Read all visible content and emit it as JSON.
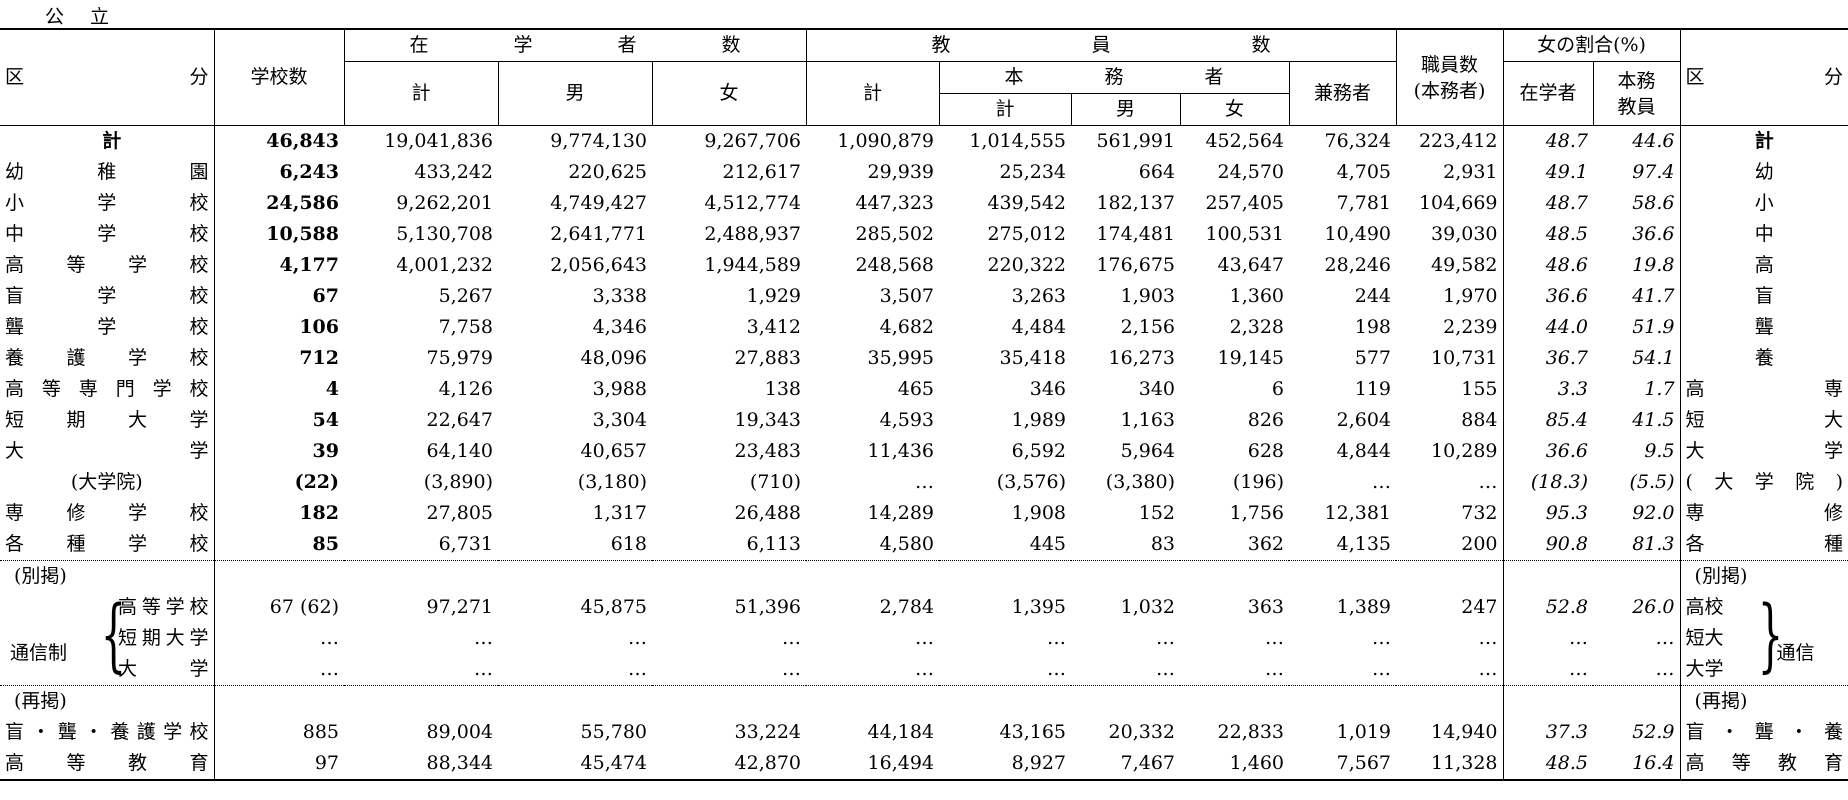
{
  "caption": "公立",
  "header": {
    "kubun": [
      "区",
      "分"
    ],
    "schools": "学校数",
    "students_group": [
      "在",
      "学",
      "者",
      "数"
    ],
    "teachers_group": [
      "教",
      "員",
      "数"
    ],
    "honmu_group": [
      "本",
      "務",
      "者"
    ],
    "kei": "計",
    "male": "男",
    "female": "女",
    "kenmu": "兼務者",
    "staff": [
      "職員数",
      "(本務者)"
    ],
    "female_ratio": "女の割合(%)",
    "ratio_students": "在学者",
    "ratio_teachers": [
      "本務",
      "教員"
    ]
  },
  "rows": [
    {
      "label": "計",
      "label_r": "計",
      "schools": "46,843",
      "st_t": "19,041,836",
      "st_m": "9,774,130",
      "st_f": "9,267,706",
      "te_t": "1,090,879",
      "hm_t": "1,014,555",
      "hm_m": "561,991",
      "hm_f": "452,564",
      "kenmu": "76,324",
      "staff": "223,412",
      "r_s": "48.7",
      "r_t": "44.6"
    },
    {
      "label": "幼稚園",
      "label_r": "幼",
      "schools": "6,243",
      "st_t": "433,242",
      "st_m": "220,625",
      "st_f": "212,617",
      "te_t": "29,939",
      "hm_t": "25,234",
      "hm_m": "664",
      "hm_f": "24,570",
      "kenmu": "4,705",
      "staff": "2,931",
      "r_s": "49.1",
      "r_t": "97.4"
    },
    {
      "label": "小学校",
      "label_r": "小",
      "schools": "24,586",
      "st_t": "9,262,201",
      "st_m": "4,749,427",
      "st_f": "4,512,774",
      "te_t": "447,323",
      "hm_t": "439,542",
      "hm_m": "182,137",
      "hm_f": "257,405",
      "kenmu": "7,781",
      "staff": "104,669",
      "r_s": "48.7",
      "r_t": "58.6"
    },
    {
      "label": "中学校",
      "label_r": "中",
      "schools": "10,588",
      "st_t": "5,130,708",
      "st_m": "2,641,771",
      "st_f": "2,488,937",
      "te_t": "285,502",
      "hm_t": "275,012",
      "hm_m": "174,481",
      "hm_f": "100,531",
      "kenmu": "10,490",
      "staff": "39,030",
      "r_s": "48.5",
      "r_t": "36.6"
    },
    {
      "label": "高等学校",
      "label_r": "高",
      "schools": "4,177",
      "st_t": "4,001,232",
      "st_m": "2,056,643",
      "st_f": "1,944,589",
      "te_t": "248,568",
      "hm_t": "220,322",
      "hm_m": "176,675",
      "hm_f": "43,647",
      "kenmu": "28,246",
      "staff": "49,582",
      "r_s": "48.6",
      "r_t": "19.8"
    },
    {
      "label": "盲学校",
      "label_r": "盲",
      "schools": "67",
      "st_t": "5,267",
      "st_m": "3,338",
      "st_f": "1,929",
      "te_t": "3,507",
      "hm_t": "3,263",
      "hm_m": "1,903",
      "hm_f": "1,360",
      "kenmu": "244",
      "staff": "1,970",
      "r_s": "36.6",
      "r_t": "41.7"
    },
    {
      "label": "聾学校",
      "label_r": "聾",
      "schools": "106",
      "st_t": "7,758",
      "st_m": "4,346",
      "st_f": "3,412",
      "te_t": "4,682",
      "hm_t": "4,484",
      "hm_m": "2,156",
      "hm_f": "2,328",
      "kenmu": "198",
      "staff": "2,239",
      "r_s": "44.0",
      "r_t": "51.9"
    },
    {
      "label": "養護学校",
      "label_r": "養",
      "schools": "712",
      "st_t": "75,979",
      "st_m": "48,096",
      "st_f": "27,883",
      "te_t": "35,995",
      "hm_t": "35,418",
      "hm_m": "16,273",
      "hm_f": "19,145",
      "kenmu": "577",
      "staff": "10,731",
      "r_s": "36.7",
      "r_t": "54.1"
    },
    {
      "label": "高等専門学校",
      "label_r": "高専",
      "schools": "4",
      "st_t": "4,126",
      "st_m": "3,988",
      "st_f": "138",
      "te_t": "465",
      "hm_t": "346",
      "hm_m": "340",
      "hm_f": "6",
      "kenmu": "119",
      "staff": "155",
      "r_s": "3.3",
      "r_t": "1.7"
    },
    {
      "label": "短期大学",
      "label_r": "短大",
      "schools": "54",
      "st_t": "22,647",
      "st_m": "3,304",
      "st_f": "19,343",
      "te_t": "4,593",
      "hm_t": "1,989",
      "hm_m": "1,163",
      "hm_f": "826",
      "kenmu": "2,604",
      "staff": "884",
      "r_s": "85.4",
      "r_t": "41.5"
    },
    {
      "label": "大学",
      "label_r": "大学",
      "schools": "39",
      "st_t": "64,140",
      "st_m": "40,657",
      "st_f": "23,483",
      "te_t": "11,436",
      "hm_t": "6,592",
      "hm_m": "5,964",
      "hm_f": "628",
      "kenmu": "4,844",
      "staff": "10,289",
      "r_s": "36.6",
      "r_t": "9.5"
    },
    {
      "label": "(大学院)",
      "label_r": "(大学院)",
      "schools": "(22)",
      "st_t": "(3,890)",
      "st_m": "(3,180)",
      "st_f": "(710)",
      "te_t": "…",
      "hm_t": "(3,576)",
      "hm_m": "(3,380)",
      "hm_f": "(196)",
      "kenmu": "…",
      "staff": "…",
      "r_s": "(18.3)",
      "r_t": "(5.5)"
    },
    {
      "label": "専修学校",
      "label_r": "専修",
      "schools": "182",
      "st_t": "27,805",
      "st_m": "1,317",
      "st_f": "26,488",
      "te_t": "14,289",
      "hm_t": "1,908",
      "hm_m": "152",
      "hm_f": "1,756",
      "kenmu": "12,381",
      "staff": "732",
      "r_s": "95.3",
      "r_t": "92.0"
    },
    {
      "label": "各種学校",
      "label_r": "各種",
      "schools": "85",
      "st_t": "6,731",
      "st_m": "618",
      "st_f": "6,113",
      "te_t": "4,580",
      "hm_t": "445",
      "hm_m": "83",
      "hm_f": "362",
      "kenmu": "4,135",
      "staff": "200",
      "r_s": "90.8",
      "r_t": "81.3"
    }
  ],
  "besshu": {
    "title": "(別掲)",
    "group_label": "通信制",
    "group_label_r": "通信",
    "rows": [
      {
        "label": "高等学校",
        "label_r": "高校",
        "schools": "67 (62)",
        "st_t": "97,271",
        "st_m": "45,875",
        "st_f": "51,396",
        "te_t": "2,784",
        "hm_t": "1,395",
        "hm_m": "1,032",
        "hm_f": "363",
        "kenmu": "1,389",
        "staff": "247",
        "r_s": "52.8",
        "r_t": "26.0"
      },
      {
        "label": "短期大学",
        "label_r": "短大",
        "schools": "…",
        "st_t": "…",
        "st_m": "…",
        "st_f": "…",
        "te_t": "…",
        "hm_t": "…",
        "hm_m": "…",
        "hm_f": "…",
        "kenmu": "…",
        "staff": "…",
        "r_s": "…",
        "r_t": "…"
      },
      {
        "label": "大学",
        "label_r": "大学",
        "schools": "…",
        "st_t": "…",
        "st_m": "…",
        "st_f": "…",
        "te_t": "…",
        "hm_t": "…",
        "hm_m": "…",
        "hm_f": "…",
        "kenmu": "…",
        "staff": "…",
        "r_s": "…",
        "r_t": "…"
      }
    ]
  },
  "saikei": {
    "title": "(再掲)",
    "rows": [
      {
        "label": "盲・聾・養護学校",
        "label_r": "盲・聾・養",
        "schools": "885",
        "st_t": "89,004",
        "st_m": "55,780",
        "st_f": "33,224",
        "te_t": "44,184",
        "hm_t": "43,165",
        "hm_m": "20,332",
        "hm_f": "22,833",
        "kenmu": "1,019",
        "staff": "14,940",
        "r_s": "37.3",
        "r_t": "52.9"
      },
      {
        "label": "高等教育",
        "label_r": "高等教育",
        "schools": "97",
        "st_t": "88,344",
        "st_m": "45,474",
        "st_f": "42,870",
        "te_t": "16,494",
        "hm_t": "8,927",
        "hm_m": "7,467",
        "hm_f": "1,460",
        "kenmu": "7,567",
        "staff": "11,328",
        "r_s": "48.5",
        "r_t": "16.4"
      }
    ]
  }
}
